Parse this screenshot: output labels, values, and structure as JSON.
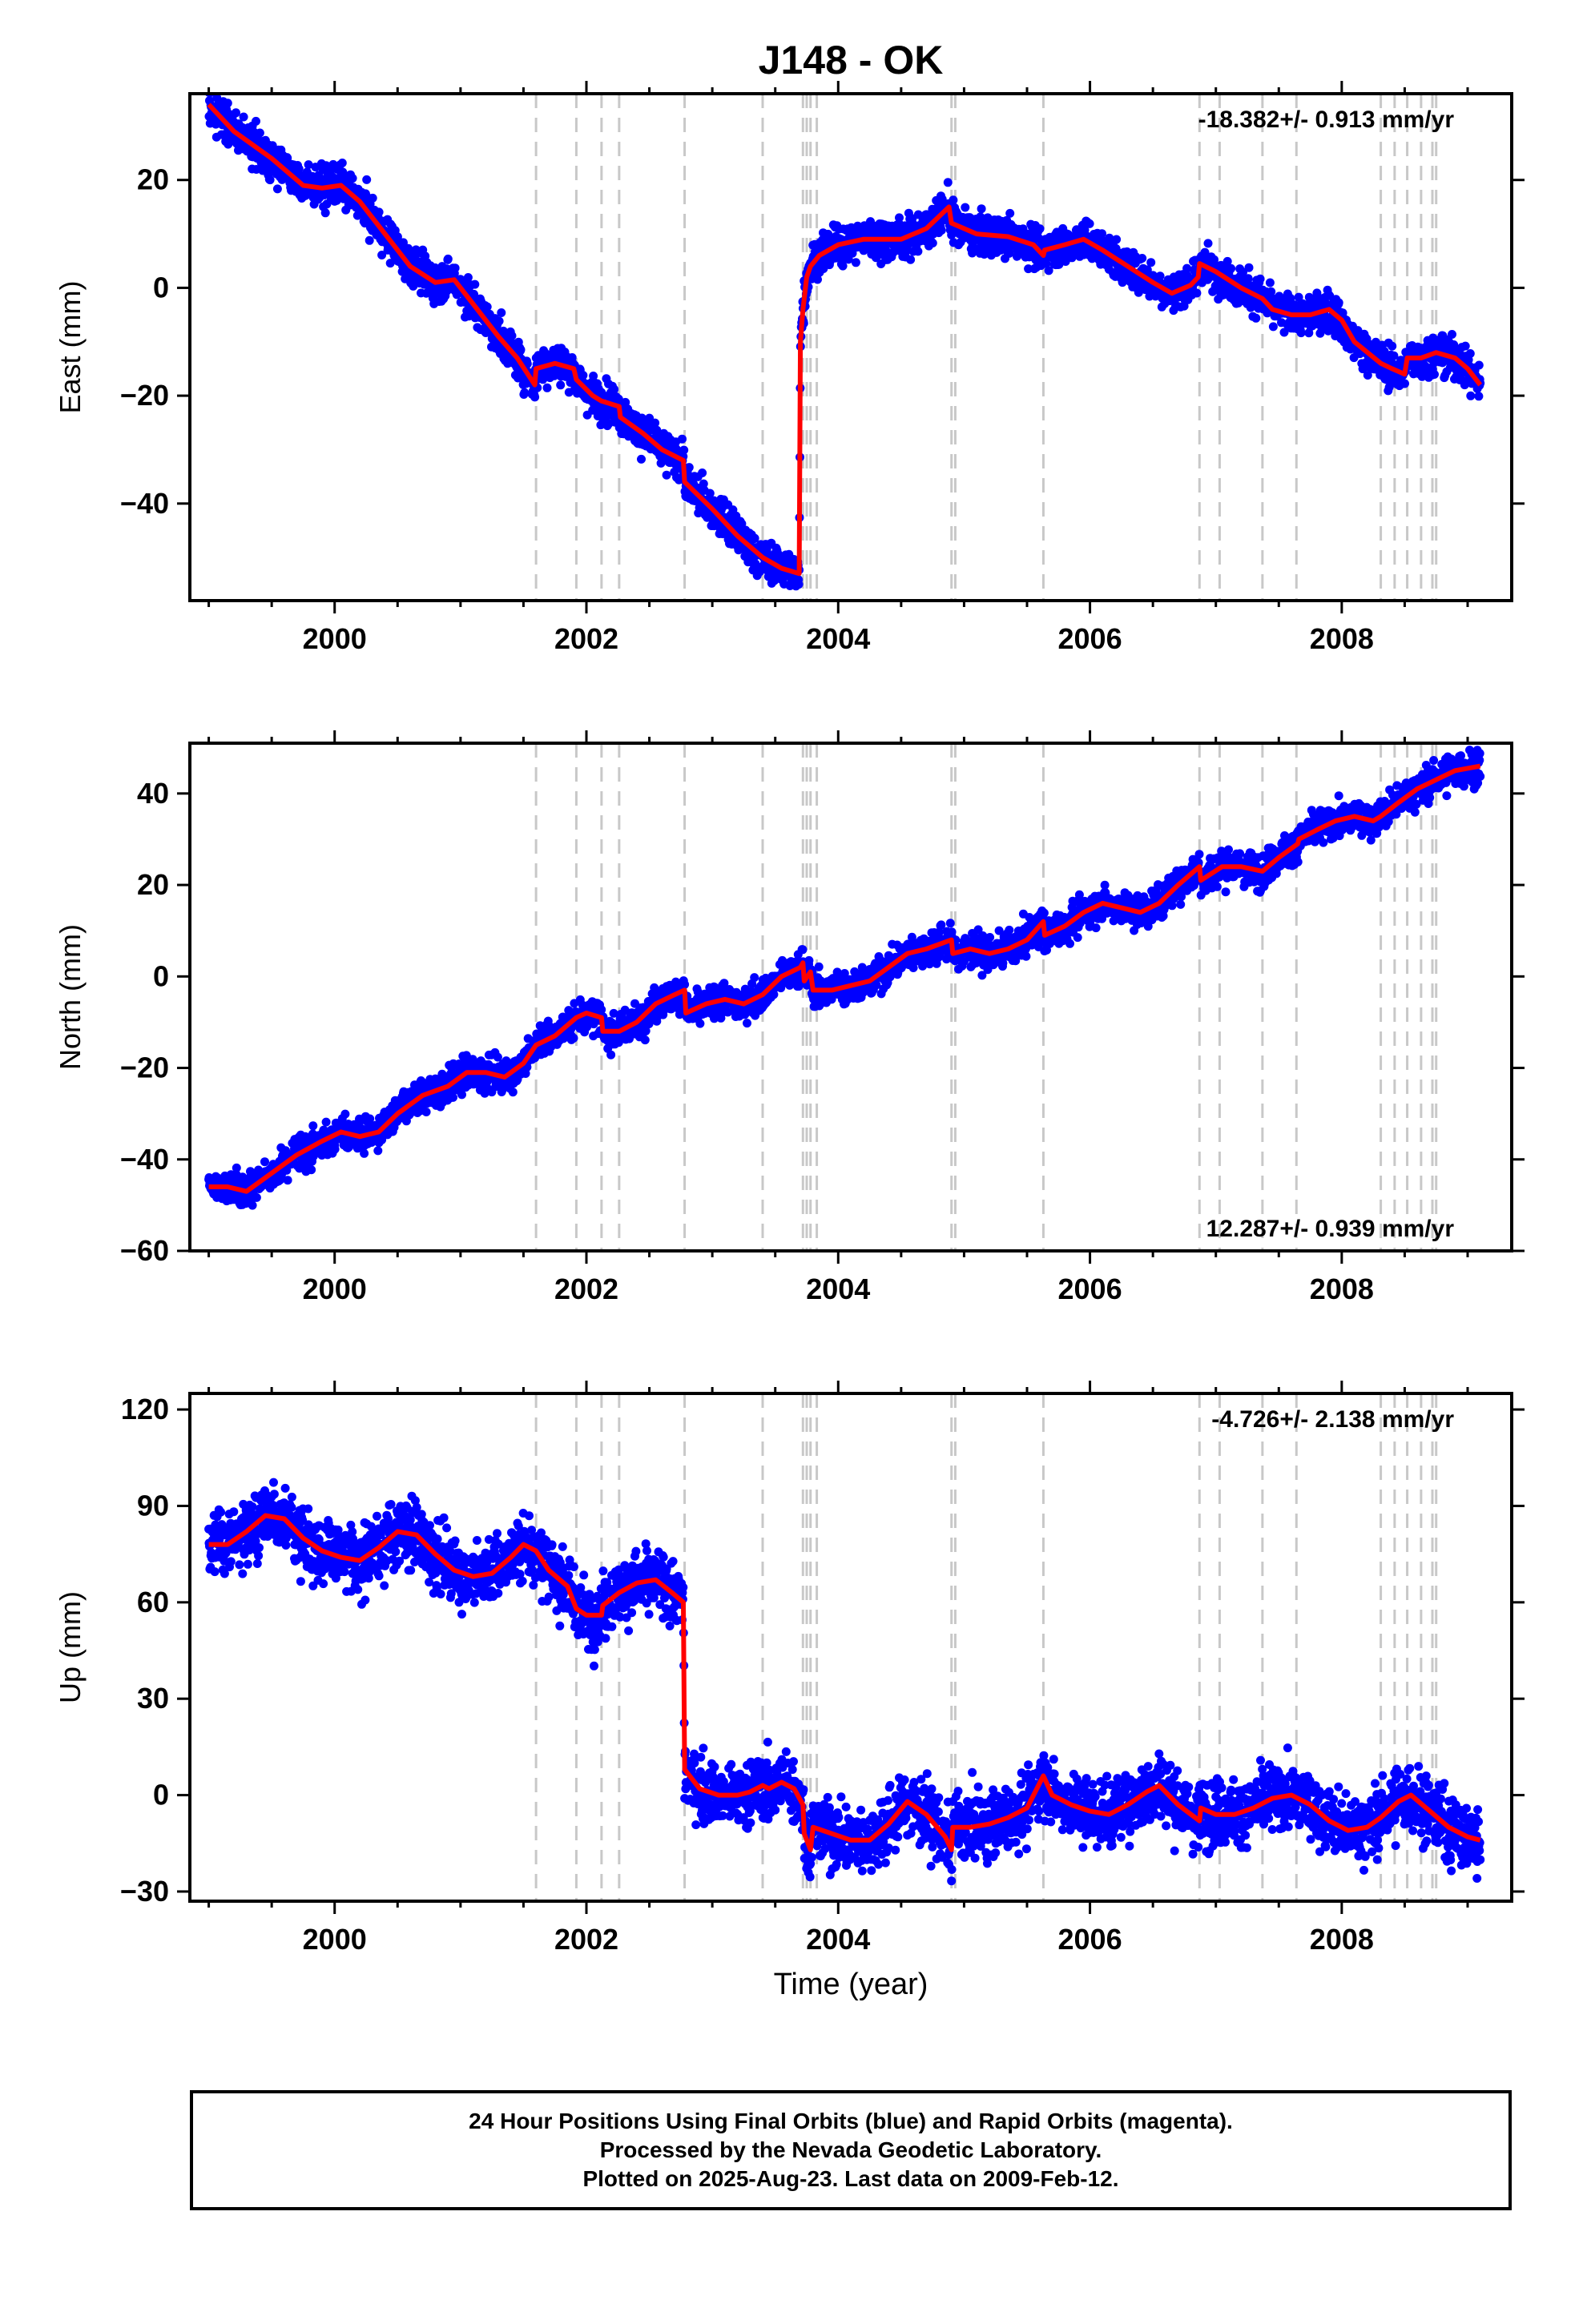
{
  "title": "J148 - OK",
  "xlabel": "Time (year)",
  "footer": {
    "line1": "24 Hour Positions Using Final Orbits (blue) and Rapid Orbits (magenta).",
    "line2": "Processed by the Nevada Geodetic Laboratory.",
    "line3": "Plotted on 2025-Aug-23. Last data on 2009-Feb-12."
  },
  "colors": {
    "data": "#0000ff",
    "model": "#ff0000",
    "events": "#c8c8c8",
    "axes": "#000000"
  },
  "event_lines": [
    2001.6,
    2001.92,
    2002.12,
    2002.26,
    2002.78,
    2003.4,
    2003.72,
    2003.75,
    2003.78,
    2003.83,
    2004.9,
    2004.93,
    2005.63,
    2006.87,
    2007.03,
    2007.37,
    2007.64,
    2008.31,
    2008.42,
    2008.52,
    2008.63,
    2008.72,
    2008.75
  ],
  "chart_data": [
    {
      "type": "scatter",
      "name": "east",
      "ylabel": "East (mm)",
      "xlim": [
        1998.85,
        2009.35
      ],
      "ylim": [
        -58,
        36
      ],
      "xticks": [
        2000,
        2002,
        2004,
        2006,
        2008
      ],
      "yticks": [
        20,
        0,
        -20,
        -40
      ],
      "rate_label": "-18.382+/- 0.913 mm/yr",
      "rate_position": "top-right",
      "scatter_mm": 2.5,
      "model": [
        [
          1999.0,
          34
        ],
        [
          1999.2,
          29
        ],
        [
          1999.5,
          24
        ],
        [
          1999.75,
          19
        ],
        [
          1999.9,
          18.5
        ],
        [
          2000.05,
          19
        ],
        [
          2000.2,
          16
        ],
        [
          2000.4,
          10
        ],
        [
          2000.6,
          4
        ],
        [
          2000.8,
          1
        ],
        [
          2000.95,
          1.5
        ],
        [
          2001.1,
          -3
        ],
        [
          2001.3,
          -9
        ],
        [
          2001.45,
          -13
        ],
        [
          2001.59,
          -18
        ],
        [
          2001.6,
          -15
        ],
        [
          2001.75,
          -14
        ],
        [
          2001.9,
          -15
        ],
        [
          2001.92,
          -17
        ],
        [
          2002.05,
          -20
        ],
        [
          2002.12,
          -21
        ],
        [
          2002.26,
          -22
        ],
        [
          2002.27,
          -24
        ],
        [
          2002.45,
          -27
        ],
        [
          2002.6,
          -30
        ],
        [
          2002.77,
          -32
        ],
        [
          2002.78,
          -36
        ],
        [
          2003.0,
          -41
        ],
        [
          2003.2,
          -46
        ],
        [
          2003.4,
          -50
        ],
        [
          2003.55,
          -52
        ],
        [
          2003.69,
          -53
        ],
        [
          2003.7,
          -10
        ],
        [
          2003.72,
          -4
        ],
        [
          2003.75,
          2
        ],
        [
          2003.78,
          4
        ],
        [
          2003.85,
          6
        ],
        [
          2004.0,
          8
        ],
        [
          2004.2,
          9
        ],
        [
          2004.5,
          9
        ],
        [
          2004.7,
          11
        ],
        [
          2004.88,
          15
        ],
        [
          2004.9,
          12
        ],
        [
          2005.1,
          10
        ],
        [
          2005.35,
          9.5
        ],
        [
          2005.55,
          8
        ],
        [
          2005.63,
          6
        ],
        [
          2005.64,
          7
        ],
        [
          2005.8,
          8
        ],
        [
          2005.95,
          9
        ],
        [
          2006.1,
          7
        ],
        [
          2006.3,
          4
        ],
        [
          2006.5,
          1
        ],
        [
          2006.65,
          -1
        ],
        [
          2006.8,
          0.5
        ],
        [
          2006.86,
          2
        ],
        [
          2006.87,
          4.5
        ],
        [
          2007.0,
          3
        ],
        [
          2007.2,
          0
        ],
        [
          2007.37,
          -2
        ],
        [
          2007.45,
          -4
        ],
        [
          2007.6,
          -5
        ],
        [
          2007.75,
          -5
        ],
        [
          2007.9,
          -4
        ],
        [
          2008.0,
          -6
        ],
        [
          2008.1,
          -10
        ],
        [
          2008.31,
          -14
        ],
        [
          2008.4,
          -15
        ],
        [
          2008.5,
          -16
        ],
        [
          2008.52,
          -13
        ],
        [
          2008.63,
          -13
        ],
        [
          2008.75,
          -12
        ],
        [
          2008.9,
          -13
        ],
        [
          2009.0,
          -15
        ],
        [
          2009.1,
          -18
        ]
      ]
    },
    {
      "type": "scatter",
      "name": "north",
      "ylabel": "North (mm)",
      "xlim": [
        1998.85,
        2009.35
      ],
      "ylim": [
        -60,
        51
      ],
      "xticks": [
        2000,
        2002,
        2004,
        2006,
        2008
      ],
      "yticks": [
        40,
        20,
        0,
        -20,
        -40,
        -60
      ],
      "rate_label": "12.287+/- 0.939 mm/yr",
      "rate_position": "bottom-right",
      "scatter_mm": 2.5,
      "model": [
        [
          1999.0,
          -46
        ],
        [
          1999.15,
          -46
        ],
        [
          1999.3,
          -47
        ],
        [
          1999.5,
          -43
        ],
        [
          1999.7,
          -39
        ],
        [
          1999.9,
          -36
        ],
        [
          2000.05,
          -34
        ],
        [
          2000.2,
          -35
        ],
        [
          2000.35,
          -34
        ],
        [
          2000.5,
          -30
        ],
        [
          2000.7,
          -26
        ],
        [
          2000.9,
          -24
        ],
        [
          2001.05,
          -21
        ],
        [
          2001.2,
          -21
        ],
        [
          2001.35,
          -22
        ],
        [
          2001.5,
          -19
        ],
        [
          2001.6,
          -15
        ],
        [
          2001.75,
          -13
        ],
        [
          2001.92,
          -9
        ],
        [
          2002.0,
          -8
        ],
        [
          2002.12,
          -9
        ],
        [
          2002.13,
          -12
        ],
        [
          2002.26,
          -12
        ],
        [
          2002.4,
          -10
        ],
        [
          2002.55,
          -6
        ],
        [
          2002.7,
          -4
        ],
        [
          2002.78,
          -3
        ],
        [
          2002.79,
          -8
        ],
        [
          2002.95,
          -6
        ],
        [
          2003.1,
          -5
        ],
        [
          2003.25,
          -6
        ],
        [
          2003.4,
          -4
        ],
        [
          2003.55,
          0
        ],
        [
          2003.7,
          2
        ],
        [
          2003.72,
          3
        ],
        [
          2003.73,
          -1
        ],
        [
          2003.78,
          1
        ],
        [
          2003.8,
          -3
        ],
        [
          2003.95,
          -3
        ],
        [
          2004.1,
          -2
        ],
        [
          2004.25,
          -1
        ],
        [
          2004.4,
          2
        ],
        [
          2004.55,
          5
        ],
        [
          2004.7,
          6
        ],
        [
          2004.9,
          8
        ],
        [
          2004.91,
          5
        ],
        [
          2005.05,
          6
        ],
        [
          2005.2,
          5
        ],
        [
          2005.35,
          6
        ],
        [
          2005.5,
          8
        ],
        [
          2005.63,
          12
        ],
        [
          2005.64,
          9
        ],
        [
          2005.8,
          11
        ],
        [
          2005.95,
          14
        ],
        [
          2006.1,
          16
        ],
        [
          2006.25,
          15
        ],
        [
          2006.4,
          14
        ],
        [
          2006.55,
          16
        ],
        [
          2006.7,
          20
        ],
        [
          2006.87,
          24
        ],
        [
          2006.88,
          21
        ],
        [
          2007.05,
          24
        ],
        [
          2007.2,
          24
        ],
        [
          2007.37,
          23
        ],
        [
          2007.5,
          26
        ],
        [
          2007.65,
          29
        ],
        [
          2007.66,
          30
        ],
        [
          2007.8,
          32
        ],
        [
          2007.95,
          34
        ],
        [
          2008.1,
          35
        ],
        [
          2008.25,
          34
        ],
        [
          2008.31,
          35
        ],
        [
          2008.45,
          38
        ],
        [
          2008.6,
          41
        ],
        [
          2008.75,
          43
        ],
        [
          2008.9,
          45
        ],
        [
          2009.1,
          46
        ]
      ]
    },
    {
      "type": "scatter",
      "name": "up",
      "ylabel": "Up (mm)",
      "xlim": [
        1998.85,
        2009.35
      ],
      "ylim": [
        -33,
        125
      ],
      "xticks": [
        2000,
        2002,
        2004,
        2006,
        2008
      ],
      "yticks": [
        120,
        90,
        60,
        30,
        0,
        -30
      ],
      "rate_label": "-4.726+/- 2.138 mm/yr",
      "rate_position": "top-right",
      "scatter_mm": 7,
      "model": [
        [
          1999.0,
          78
        ],
        [
          1999.15,
          78
        ],
        [
          1999.3,
          82
        ],
        [
          1999.45,
          87
        ],
        [
          1999.6,
          86
        ],
        [
          1999.75,
          80
        ],
        [
          1999.9,
          76
        ],
        [
          2000.05,
          74
        ],
        [
          2000.2,
          73
        ],
        [
          2000.35,
          77
        ],
        [
          2000.5,
          82
        ],
        [
          2000.65,
          81
        ],
        [
          2000.8,
          75
        ],
        [
          2000.95,
          70
        ],
        [
          2001.1,
          68
        ],
        [
          2001.25,
          69
        ],
        [
          2001.4,
          74
        ],
        [
          2001.5,
          78
        ],
        [
          2001.6,
          76
        ],
        [
          2001.7,
          70
        ],
        [
          2001.85,
          65
        ],
        [
          2001.92,
          58
        ],
        [
          2002.0,
          56
        ],
        [
          2002.12,
          56
        ],
        [
          2002.13,
          59
        ],
        [
          2002.26,
          63
        ],
        [
          2002.4,
          66
        ],
        [
          2002.55,
          67
        ],
        [
          2002.68,
          63
        ],
        [
          2002.77,
          60
        ],
        [
          2002.78,
          8
        ],
        [
          2002.9,
          2
        ],
        [
          2003.05,
          0
        ],
        [
          2003.2,
          0
        ],
        [
          2003.3,
          1
        ],
        [
          2003.4,
          3
        ],
        [
          2003.45,
          2
        ],
        [
          2003.55,
          4
        ],
        [
          2003.65,
          2
        ],
        [
          2003.72,
          -3
        ],
        [
          2003.73,
          -12
        ],
        [
          2003.78,
          -17
        ],
        [
          2003.8,
          -10
        ],
        [
          2003.95,
          -12
        ],
        [
          2004.1,
          -14
        ],
        [
          2004.25,
          -14
        ],
        [
          2004.4,
          -9
        ],
        [
          2004.55,
          -2
        ],
        [
          2004.7,
          -6
        ],
        [
          2004.85,
          -13
        ],
        [
          2004.9,
          -17
        ],
        [
          2004.91,
          -10
        ],
        [
          2005.05,
          -10
        ],
        [
          2005.2,
          -9
        ],
        [
          2005.35,
          -7
        ],
        [
          2005.5,
          -4
        ],
        [
          2005.63,
          6
        ],
        [
          2005.7,
          0
        ],
        [
          2005.85,
          -3
        ],
        [
          2006.0,
          -5
        ],
        [
          2006.15,
          -6
        ],
        [
          2006.3,
          -3
        ],
        [
          2006.45,
          1
        ],
        [
          2006.55,
          3
        ],
        [
          2006.7,
          -3
        ],
        [
          2006.87,
          -8
        ],
        [
          2006.88,
          -4
        ],
        [
          2007.0,
          -6
        ],
        [
          2007.15,
          -6
        ],
        [
          2007.3,
          -4
        ],
        [
          2007.45,
          -1
        ],
        [
          2007.6,
          0
        ],
        [
          2007.75,
          -3
        ],
        [
          2007.9,
          -8
        ],
        [
          2008.05,
          -11
        ],
        [
          2008.2,
          -10
        ],
        [
          2008.31,
          -7
        ],
        [
          2008.45,
          -2
        ],
        [
          2008.55,
          0
        ],
        [
          2008.7,
          -5
        ],
        [
          2008.85,
          -10
        ],
        [
          2009.0,
          -13
        ],
        [
          2009.1,
          -14
        ]
      ]
    }
  ]
}
